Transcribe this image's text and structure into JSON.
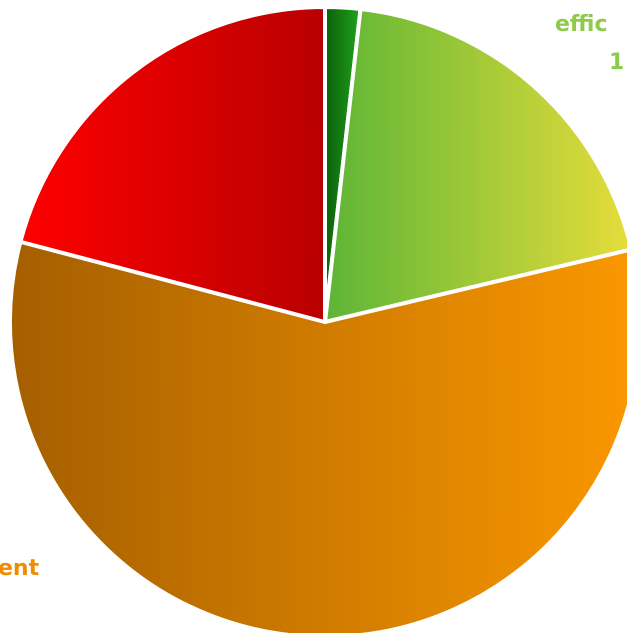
{
  "chart_data": {
    "type": "pie",
    "title": "",
    "slices": [
      {
        "label": "",
        "value": 1.8,
        "color_start": "#0a5f0a",
        "color_end": "#22a31b"
      },
      {
        "label": "effic",
        "value": 19.5,
        "color_start": "#5db536",
        "color_end": "#e6dd3a"
      },
      {
        "label": "ent",
        "value": 57.8,
        "color_start": "#a55f00",
        "color_end": "#fb9800"
      },
      {
        "label": "",
        "value": 20.9,
        "color_start": "#ff0000",
        "color_end": "#b80000"
      }
    ],
    "visible_labels": [
      {
        "text": "effic",
        "color": "#8fcb4a"
      },
      {
        "text": "1",
        "color": "#8fcb4a"
      },
      {
        "text": "ent",
        "color": "#f08c00"
      }
    ],
    "legend": "none"
  }
}
